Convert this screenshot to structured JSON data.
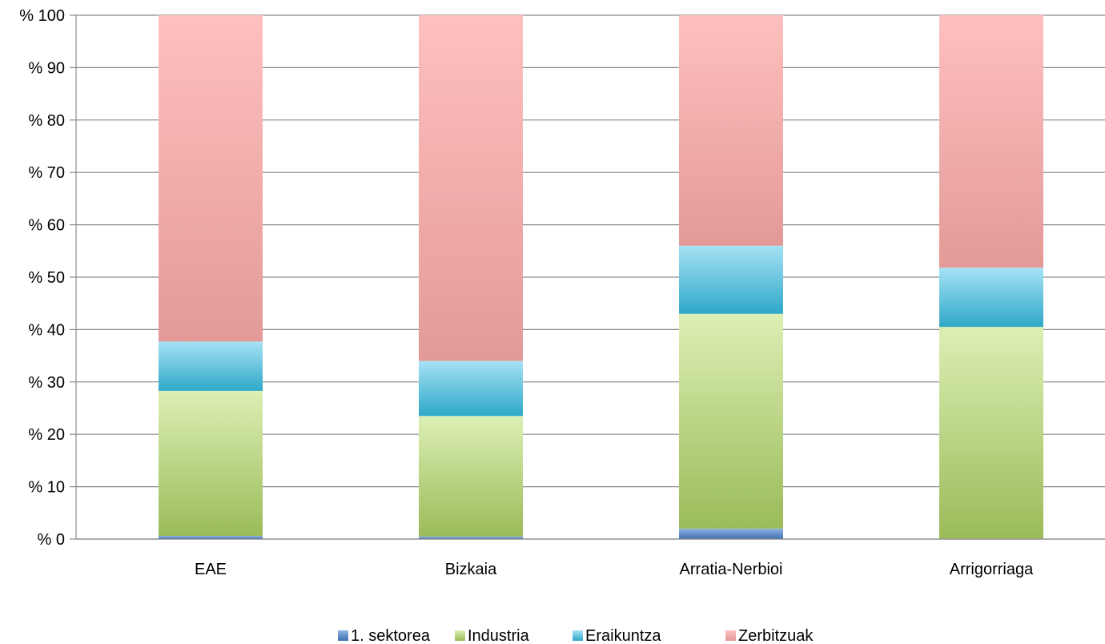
{
  "chart_data": {
    "type": "bar",
    "stacked": true,
    "percent": true,
    "categories": [
      "EAE",
      "Bizkaia",
      "Arratia-Nerbioi",
      "Arrigorriaga"
    ],
    "series": [
      {
        "name": "1. sektorea",
        "values": [
          0.6,
          0.5,
          2.0,
          0.1
        ],
        "color": "#4f81bd"
      },
      {
        "name": "Industria",
        "values": [
          27.7,
          23.0,
          41.0,
          40.4
        ],
        "color": "#9bbb59"
      },
      {
        "name": "Eraikuntza",
        "values": [
          9.4,
          10.5,
          13.0,
          11.3
        ],
        "color": "#4bacc6"
      },
      {
        "name": "Zerbitzuak",
        "values": [
          62.3,
          66.0,
          44.0,
          48.2
        ],
        "color": "#f2a8a6"
      }
    ],
    "y_ticks": [
      "% 0",
      "% 10",
      "% 20",
      "% 30",
      "% 40",
      "% 50",
      "% 60",
      "% 70",
      "% 80",
      "% 90",
      "% 100"
    ],
    "ylim": [
      0,
      100
    ],
    "grid": true,
    "legend_position": "bottom"
  }
}
